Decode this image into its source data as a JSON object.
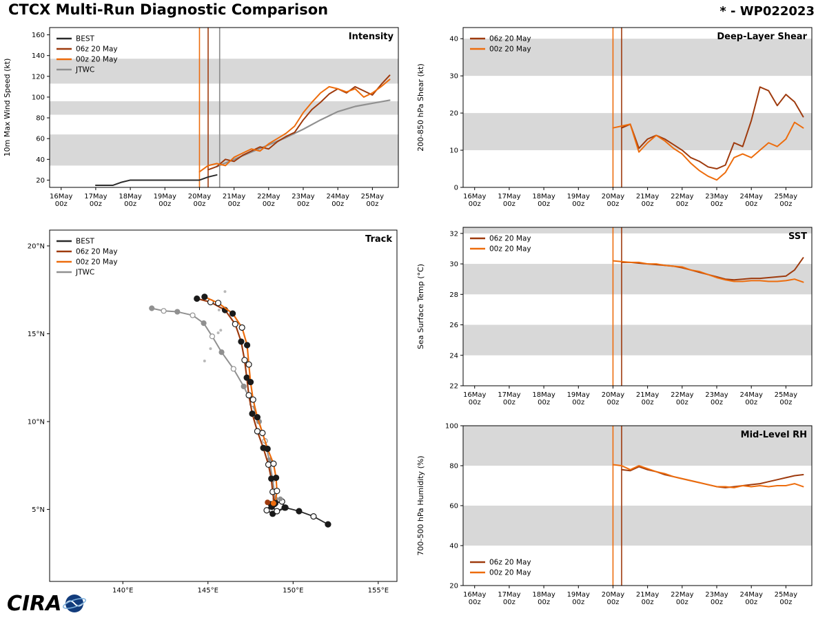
{
  "header": {
    "title": "CTCX Multi-Run Diagnostic Comparison",
    "storm_id": "* - WP022023"
  },
  "branding": {
    "logo_text": "CIRA"
  },
  "colors": {
    "best": "#2a2a2a",
    "run06z": "#9e3a0d",
    "run00z": "#ed6c0c",
    "jtwc": "#909090",
    "band": "#d8d8d8",
    "vline_gray": "#8a8a8a"
  },
  "time_ticks": [
    {
      "v": 0,
      "l": [
        "16May",
        "00z"
      ]
    },
    {
      "v": 24,
      "l": [
        "17May",
        "00z"
      ]
    },
    {
      "v": 48,
      "l": [
        "18May",
        "00z"
      ]
    },
    {
      "v": 72,
      "l": [
        "19May",
        "00z"
      ]
    },
    {
      "v": 96,
      "l": [
        "20May",
        "00z"
      ]
    },
    {
      "v": 120,
      "l": [
        "21May",
        "00z"
      ]
    },
    {
      "v": 144,
      "l": [
        "22May",
        "00z"
      ]
    },
    {
      "v": 168,
      "l": [
        "23May",
        "00z"
      ]
    },
    {
      "v": 192,
      "l": [
        "24May",
        "00z"
      ]
    },
    {
      "v": 216,
      "l": [
        "25May",
        "00z"
      ]
    }
  ],
  "chart_data": [
    {
      "id": "intensity",
      "type": "line",
      "kind": "time",
      "title": "Intensity",
      "ylabel": "10m Max Wind Speed (kt)",
      "xlim": [
        -8,
        234
      ],
      "ylim": [
        13,
        167
      ],
      "yticks": [
        20,
        40,
        60,
        80,
        100,
        120,
        140,
        160
      ],
      "bands": [
        [
          34,
          64
        ],
        [
          83,
          96
        ],
        [
          113,
          137
        ]
      ],
      "vlines": [
        {
          "x": 96,
          "color": "#ed6c0c"
        },
        {
          "x": 102,
          "color": "#9e3a0d"
        },
        {
          "x": 110,
          "color": "#8a8a8a"
        }
      ],
      "legend": {
        "pos": "tl",
        "entries": [
          {
            "label": "BEST",
            "color": "#2a2a2a"
          },
          {
            "label": "06z 20 May",
            "color": "#9e3a0d"
          },
          {
            "label": "00z 20 May",
            "color": "#ed6c0c"
          },
          {
            "label": "JTWC",
            "color": "#909090"
          }
        ]
      },
      "series": [
        {
          "name": "BEST",
          "color": "#2a2a2a",
          "width": 2,
          "x": [
            24,
            30,
            36,
            42,
            48,
            60,
            72,
            84,
            96,
            102,
            108
          ],
          "y": [
            15,
            15,
            15,
            18,
            20,
            20,
            20,
            20,
            20,
            23,
            25
          ]
        },
        {
          "name": "JTWC",
          "color": "#909090",
          "width": 2.2,
          "x": [
            108,
            120,
            132,
            144,
            156,
            168,
            180,
            192,
            204,
            216,
            228
          ],
          "y": [
            33,
            40,
            47,
            54,
            61,
            69,
            78,
            86,
            91,
            94,
            97
          ]
        },
        {
          "name": "06z 20 May",
          "color": "#9e3a0d",
          "width": 2,
          "x": [
            102,
            108,
            114,
            120,
            126,
            132,
            138,
            144,
            150,
            156,
            162,
            168,
            174,
            180,
            186,
            192,
            198,
            204,
            210,
            216,
            222,
            228
          ],
          "y": [
            30,
            33,
            40,
            38,
            44,
            48,
            52,
            50,
            57,
            62,
            66,
            78,
            88,
            95,
            103,
            108,
            104,
            110,
            106,
            102,
            112,
            121
          ]
        },
        {
          "name": "00z 20 May",
          "color": "#ed6c0c",
          "width": 2,
          "x": [
            96,
            102,
            108,
            114,
            120,
            126,
            132,
            138,
            144,
            150,
            156,
            162,
            168,
            174,
            180,
            186,
            192,
            198,
            204,
            210,
            216,
            222,
            228
          ],
          "y": [
            28,
            34,
            36,
            34,
            42,
            46,
            50,
            48,
            55,
            60,
            65,
            72,
            85,
            95,
            104,
            110,
            108,
            105,
            108,
            100,
            104,
            110,
            117
          ]
        }
      ]
    },
    {
      "id": "shear",
      "type": "line",
      "kind": "time",
      "title": "Deep-Layer Shear",
      "ylabel": "200-850 hPa Shear (kt)",
      "xlim": [
        -8,
        234
      ],
      "ylim": [
        0,
        43
      ],
      "yticks": [
        0,
        10,
        20,
        30,
        40
      ],
      "bands": [
        [
          10,
          20
        ],
        [
          30,
          40
        ]
      ],
      "vlines": [
        {
          "x": 96,
          "color": "#ed6c0c"
        },
        {
          "x": 102,
          "color": "#9e3a0d"
        }
      ],
      "legend": {
        "pos": "tl",
        "entries": [
          {
            "label": "06z 20 May",
            "color": "#9e3a0d"
          },
          {
            "label": "00z 20 May",
            "color": "#ed6c0c"
          }
        ]
      },
      "series": [
        {
          "name": "06z 20 May",
          "color": "#9e3a0d",
          "width": 2,
          "x": [
            102,
            108,
            114,
            120,
            126,
            132,
            138,
            144,
            150,
            156,
            162,
            168,
            174,
            180,
            186,
            192,
            198,
            204,
            210,
            216,
            222,
            228
          ],
          "y": [
            16,
            17,
            10.5,
            13,
            14,
            13,
            11.5,
            10,
            8,
            7,
            5.5,
            5,
            6,
            12,
            11,
            18,
            27,
            26,
            22,
            25,
            23,
            19
          ]
        },
        {
          "name": "00z 20 May",
          "color": "#ed6c0c",
          "width": 2,
          "x": [
            96,
            102,
            108,
            114,
            120,
            126,
            132,
            138,
            144,
            150,
            156,
            162,
            168,
            174,
            180,
            186,
            192,
            198,
            204,
            210,
            216,
            222,
            228
          ],
          "y": [
            16,
            16.5,
            17,
            9.5,
            12,
            14,
            12.5,
            10.5,
            9,
            6.5,
            4.5,
            3,
            2,
            4,
            8,
            9,
            8,
            10,
            12,
            11,
            13,
            17.5,
            16
          ]
        }
      ]
    },
    {
      "id": "sst",
      "type": "line",
      "kind": "time",
      "title": "SST",
      "ylabel": "Sea Surface Temp (°C)",
      "xlim": [
        -8,
        234
      ],
      "ylim": [
        22,
        32.4
      ],
      "yticks": [
        22,
        24,
        26,
        28,
        30,
        32
      ],
      "bands": [
        [
          24,
          26
        ],
        [
          28,
          30
        ],
        [
          32,
          34
        ]
      ],
      "vlines": [
        {
          "x": 96,
          "color": "#ed6c0c"
        },
        {
          "x": 102,
          "color": "#9e3a0d"
        }
      ],
      "legend": {
        "pos": "tl",
        "entries": [
          {
            "label": "06z 20 May",
            "color": "#9e3a0d"
          },
          {
            "label": "00z 20 May",
            "color": "#ed6c0c"
          }
        ]
      },
      "series": [
        {
          "name": "06z 20 May",
          "color": "#9e3a0d",
          "width": 2,
          "x": [
            102,
            108,
            114,
            120,
            126,
            132,
            138,
            144,
            150,
            156,
            162,
            168,
            174,
            180,
            186,
            192,
            198,
            204,
            210,
            216,
            222,
            228
          ],
          "y": [
            30.1,
            30.1,
            30.05,
            30.0,
            29.95,
            29.9,
            29.85,
            29.75,
            29.6,
            29.45,
            29.3,
            29.15,
            29.0,
            28.95,
            29.0,
            29.05,
            29.05,
            29.1,
            29.15,
            29.2,
            29.6,
            30.4
          ]
        },
        {
          "name": "00z 20 May",
          "color": "#ed6c0c",
          "width": 2,
          "x": [
            96,
            102,
            108,
            114,
            120,
            126,
            132,
            138,
            144,
            150,
            156,
            162,
            168,
            174,
            180,
            186,
            192,
            198,
            204,
            210,
            216,
            222,
            228
          ],
          "y": [
            30.2,
            30.15,
            30.1,
            30.1,
            30.0,
            30.0,
            29.9,
            29.85,
            29.8,
            29.6,
            29.5,
            29.3,
            29.1,
            28.95,
            28.85,
            28.85,
            28.9,
            28.9,
            28.85,
            28.85,
            28.9,
            29.0,
            28.8
          ]
        }
      ]
    },
    {
      "id": "rh",
      "type": "line",
      "kind": "time",
      "title": "Mid-Level RH",
      "ylabel": "700-500 hPa Humidity (%)",
      "xlim": [
        -8,
        234
      ],
      "ylim": [
        20,
        100
      ],
      "yticks": [
        20,
        40,
        60,
        80,
        100
      ],
      "bands": [
        [
          40,
          60
        ],
        [
          80,
          100
        ]
      ],
      "vlines": [
        {
          "x": 96,
          "color": "#ed6c0c"
        },
        {
          "x": 102,
          "color": "#9e3a0d"
        }
      ],
      "legend": {
        "pos": "bl",
        "entries": [
          {
            "label": "06z 20 May",
            "color": "#9e3a0d"
          },
          {
            "label": "00z 20 May",
            "color": "#ed6c0c"
          }
        ]
      },
      "series": [
        {
          "name": "06z 20 May",
          "color": "#9e3a0d",
          "width": 2,
          "x": [
            102,
            108,
            114,
            120,
            126,
            132,
            138,
            144,
            150,
            156,
            162,
            168,
            174,
            180,
            186,
            192,
            198,
            204,
            210,
            216,
            222,
            228
          ],
          "y": [
            78,
            77.5,
            79.5,
            78,
            77,
            75.5,
            74.5,
            73.5,
            72.5,
            71.5,
            70.5,
            69.5,
            69,
            69.5,
            70,
            70.5,
            71,
            72,
            73,
            74,
            75,
            75.5
          ]
        },
        {
          "name": "00z 20 May",
          "color": "#ed6c0c",
          "width": 2,
          "x": [
            96,
            102,
            108,
            114,
            120,
            126,
            132,
            138,
            144,
            150,
            156,
            162,
            168,
            174,
            180,
            186,
            192,
            198,
            204,
            210,
            216,
            222,
            228
          ],
          "y": [
            80.5,
            80,
            78,
            80,
            78.5,
            77,
            76,
            74.5,
            73.5,
            72.5,
            71.5,
            70.5,
            69.5,
            69.5,
            69,
            70,
            69.5,
            70,
            69.5,
            70,
            70,
            71,
            69.5
          ]
        }
      ]
    },
    {
      "id": "track",
      "type": "track",
      "kind": "map",
      "title": "Track",
      "xlim": [
        135.7,
        156.1
      ],
      "ylim": [
        0.9,
        20.9
      ],
      "xticks": [
        {
          "v": 140,
          "label": "140°E"
        },
        {
          "v": 145,
          "label": "145°E"
        },
        {
          "v": 150,
          "label": "150°E"
        },
        {
          "v": 155,
          "label": "155°E"
        }
      ],
      "yticks": [
        {
          "v": 5,
          "label": "5°N"
        },
        {
          "v": 10,
          "label": "10°N"
        },
        {
          "v": 15,
          "label": "15°N"
        },
        {
          "v": 20,
          "label": "20°N"
        }
      ],
      "legend": {
        "pos": "tl",
        "entries": [
          {
            "label": "BEST",
            "color": "#2a2a2a"
          },
          {
            "label": "06z 20 May",
            "color": "#9e3a0d"
          },
          {
            "label": "00z 20 May",
            "color": "#ed6c0c"
          },
          {
            "label": "JTWC",
            "color": "#909090"
          }
        ]
      },
      "islands": [
        [
          144.8,
          13.45
        ],
        [
          145.15,
          14.15
        ],
        [
          145.6,
          15.05
        ],
        [
          145.75,
          15.2
        ],
        [
          145.65,
          16.35
        ],
        [
          146.0,
          17.4
        ]
      ],
      "points": [
        {
          "x": 148.85,
          "y": 5.35,
          "color": "#ed6c0c",
          "r": 4
        },
        {
          "x": 148.5,
          "y": 5.4,
          "color": "#9e3a0d",
          "r": 4
        },
        {
          "x": 149.25,
          "y": 5.6,
          "color": "#909090",
          "r": 3.5
        }
      ],
      "series": [
        {
          "name": "JTWC",
          "color": "#909090",
          "width": 2,
          "markers": true,
          "marker_color": "#909090",
          "marker_r": 3.5,
          "lon": [
            148.95,
            148.8,
            148.6,
            148.35,
            148.0,
            147.6,
            147.1,
            146.5,
            145.8,
            145.25,
            144.75,
            144.1,
            143.2,
            142.4,
            141.7
          ],
          "lat": [
            5.6,
            6.7,
            7.8,
            8.9,
            10.0,
            11.0,
            12.0,
            13.0,
            13.95,
            14.85,
            15.6,
            16.05,
            16.25,
            16.3,
            16.45
          ]
        },
        {
          "name": "BEST",
          "color": "#2a2a2a",
          "width": 1.8,
          "markers": true,
          "marker_color": "#1a1a1a",
          "marker_r": 4,
          "lon": [
            152.05,
            151.2,
            150.35,
            149.55,
            148.8,
            148.45,
            148.7,
            149.35,
            149.5,
            149.05,
            148.75,
            148.95
          ],
          "lat": [
            4.15,
            4.6,
            4.9,
            5.1,
            4.75,
            4.95,
            5.3,
            5.45,
            5.1,
            4.9,
            5.15,
            5.4
          ]
        },
        {
          "name": "06z 20 May",
          "color": "#9e3a0d",
          "width": 2.2,
          "markers": true,
          "marker_color": "#1a1a1a",
          "marker_r": 4,
          "lon": [
            148.9,
            148.8,
            148.72,
            148.55,
            148.25,
            147.9,
            147.6,
            147.4,
            147.28,
            147.15,
            146.95,
            146.6,
            146.0,
            145.15,
            144.35
          ],
          "lat": [
            5.3,
            6.0,
            6.75,
            7.55,
            8.5,
            9.45,
            10.45,
            11.5,
            12.5,
            13.5,
            14.55,
            15.55,
            16.35,
            16.8,
            17.0
          ]
        },
        {
          "name": "00z 20 May",
          "color": "#ed6c0c",
          "width": 2.2,
          "markers": true,
          "marker_color": "#1a1a1a",
          "marker_r": 4,
          "lon": [
            148.95,
            149.05,
            149.0,
            148.85,
            148.5,
            148.2,
            147.9,
            147.65,
            147.5,
            147.4,
            147.3,
            147.0,
            146.45,
            145.6,
            144.8
          ],
          "lat": [
            5.35,
            6.05,
            6.8,
            7.6,
            8.45,
            9.35,
            10.25,
            11.25,
            12.25,
            13.25,
            14.35,
            15.35,
            16.15,
            16.75,
            17.1
          ]
        }
      ]
    }
  ]
}
